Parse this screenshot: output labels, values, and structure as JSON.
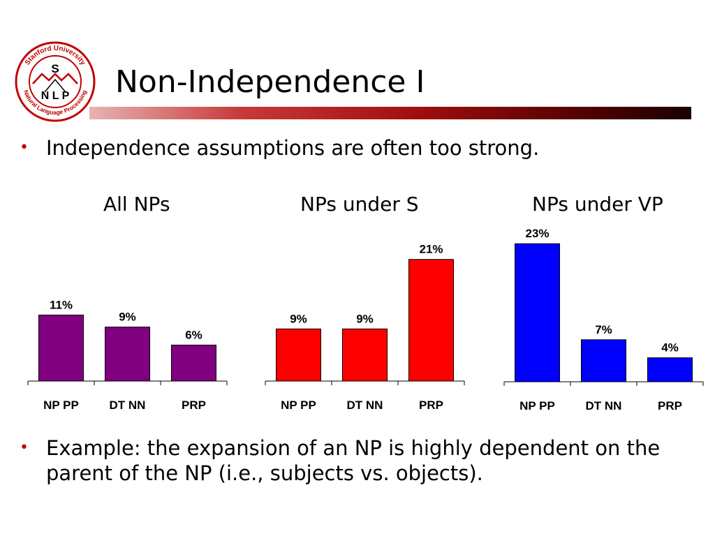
{
  "logo": {
    "ring_top": "Stanford University",
    "ring_bottom": "Natural Language Processing",
    "letter_s": "S",
    "letters_nlp": "N L P"
  },
  "slide": {
    "title": "Non-Independence I",
    "bullets": [
      {
        "symbol": "•",
        "text": "Independence assumptions are often too strong."
      },
      {
        "symbol": "•",
        "text": "Example: the expansion of an NP is highly dependent on the parent of the NP (i.e., subjects vs. objects)."
      }
    ]
  },
  "colors": {
    "accent": "#c00000",
    "purple": "#800080",
    "red": "#ff0000",
    "blue": "#0000ff"
  },
  "chart_data": [
    {
      "type": "bar",
      "title": "All NPs",
      "categories": [
        "NP PP",
        "DT NN",
        "PRP"
      ],
      "values": [
        11,
        9,
        6
      ],
      "labels": [
        "11%",
        "9%",
        "6%"
      ],
      "color": "#800080",
      "ylim": [
        0,
        25
      ]
    },
    {
      "type": "bar",
      "title": "NPs under S",
      "categories": [
        "NP PP",
        "DT NN",
        "PRP"
      ],
      "values": [
        9,
        9,
        21
      ],
      "labels": [
        "9%",
        "9%",
        "21%"
      ],
      "color": "#ff0000",
      "ylim": [
        0,
        25
      ]
    },
    {
      "type": "bar",
      "title": "NPs under VP",
      "categories": [
        "NP PP",
        "DT NN",
        "PRP"
      ],
      "values": [
        23,
        7,
        4
      ],
      "labels": [
        "23%",
        "7%",
        "4%"
      ],
      "color": "#0000ff",
      "ylim": [
        0,
        25
      ]
    }
  ]
}
